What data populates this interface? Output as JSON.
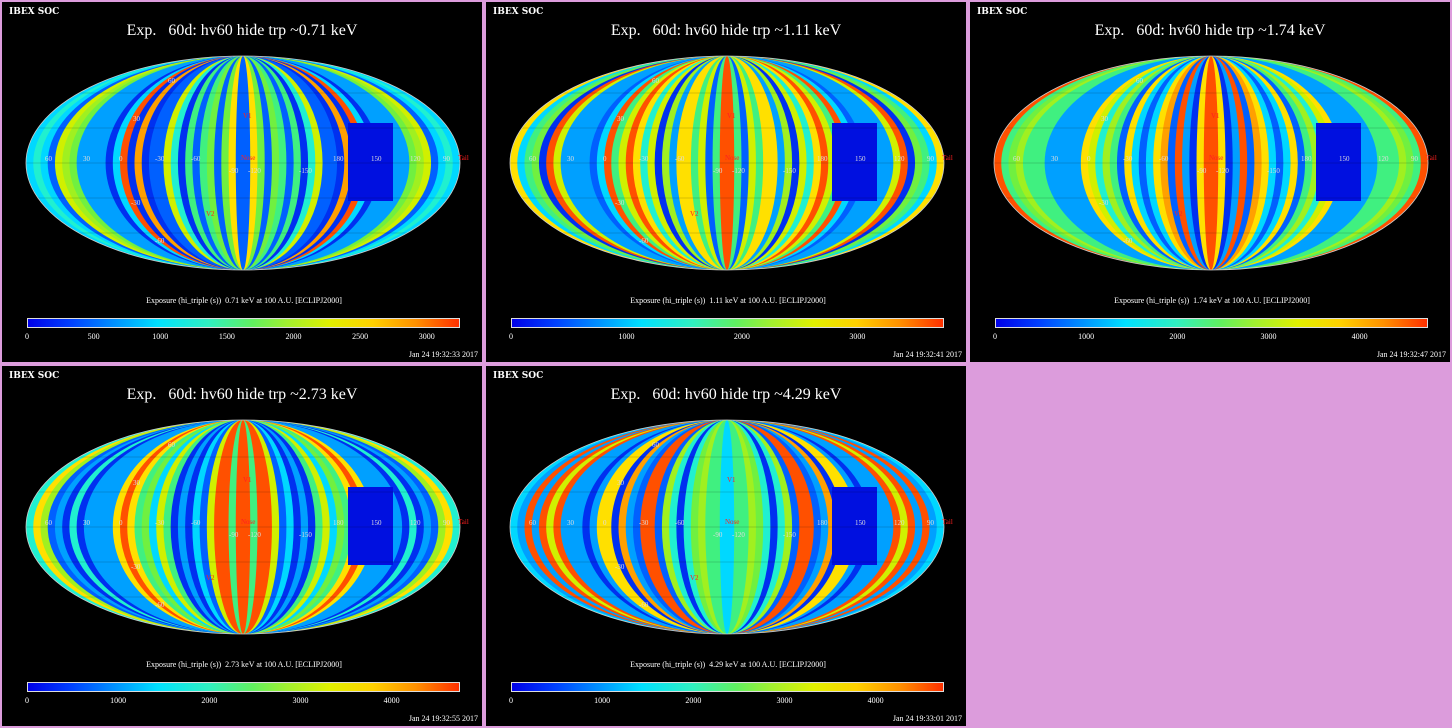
{
  "header_label": "IBEX SOC",
  "map_labels": {
    "longitudes": [
      "60",
      "30",
      "0",
      "-30",
      "-60",
      "-90",
      "-120",
      "-150",
      "180",
      "150",
      "120",
      "90"
    ],
    "latitudes": [
      "30",
      "-30",
      "60",
      "-60"
    ],
    "markers": [
      "V1",
      "V2",
      "Nose",
      "Tail"
    ]
  },
  "panels": [
    {
      "title": "Exp.   60d: hv60 hide trp ~0.71 keV",
      "caption": "Exposure (hi_triple (s))  0.71 keV at 100 A.U. [ECLIPJ2000]",
      "timestamp": "Jan 24 19:32:33 2017",
      "colorbar_ticks": [
        "0",
        "500",
        "1000",
        "1500",
        "2000",
        "2500",
        "3000"
      ],
      "colorbar_max": 3250
    },
    {
      "title": "Exp.   60d: hv60 hide trp ~1.11 keV",
      "caption": "Exposure (hi_triple (s))  1.11 keV at 100 A.U. [ECLIPJ2000]",
      "timestamp": "Jan 24 19:32:41 2017",
      "colorbar_ticks": [
        "0",
        "1000",
        "2000",
        "3000"
      ],
      "colorbar_max": 3750
    },
    {
      "title": "Exp.   60d: hv60 hide trp ~1.74 keV",
      "caption": "Exposure (hi_triple (s))  1.74 keV at 100 A.U. [ECLIPJ2000]",
      "timestamp": "Jan 24 19:32:47 2017",
      "colorbar_ticks": [
        "0",
        "1000",
        "2000",
        "3000",
        "4000"
      ],
      "colorbar_max": 4750
    },
    {
      "title": "Exp.   60d: hv60 hide trp ~2.73 keV",
      "caption": "Exposure (hi_triple (s))  2.73 keV at 100 A.U. [ECLIPJ2000]",
      "timestamp": "Jan 24 19:32:55 2017",
      "colorbar_ticks": [
        "0",
        "1000",
        "2000",
        "3000",
        "4000"
      ],
      "colorbar_max": 4750
    },
    {
      "title": "Exp.   60d: hv60 hide trp ~4.29 keV",
      "caption": "Exposure (hi_triple (s))  4.29 keV at 100 A.U. [ECLIPJ2000]",
      "timestamp": "Jan 24 19:33:01 2017",
      "colorbar_ticks": [
        "0",
        "1000",
        "2000",
        "3000",
        "4000"
      ],
      "colorbar_max": 4750
    }
  ],
  "chart_data": [
    {
      "type": "heatmap",
      "title": "Exp.   60d: hv60 hide trp ~0.71 keV",
      "xlabel": "Exposure (hi_triple (s))  0.71 keV at 100 A.U. [ECLIPJ2000]",
      "colorbar_range": [
        0,
        3250
      ]
    },
    {
      "type": "heatmap",
      "title": "Exp.   60d: hv60 hide trp ~1.11 keV",
      "xlabel": "Exposure (hi_triple (s))  1.11 keV at 100 A.U. [ECLIPJ2000]",
      "colorbar_range": [
        0,
        3750
      ]
    },
    {
      "type": "heatmap",
      "title": "Exp.   60d: hv60 hide trp ~1.74 keV",
      "xlabel": "Exposure (hi_triple (s))  1.74 keV at 100 A.U. [ECLIPJ2000]",
      "colorbar_range": [
        0,
        4750
      ]
    },
    {
      "type": "heatmap",
      "title": "Exp.   60d: hv60 hide trp ~2.73 keV",
      "xlabel": "Exposure (hi_triple (s))  2.73 keV at 100 A.U. [ECLIPJ2000]",
      "colorbar_range": [
        0,
        4750
      ]
    },
    {
      "type": "heatmap",
      "title": "Exp.   60d: hv60 hide trp ~4.29 keV",
      "xlabel": "Exposure (hi_triple (s))  4.29 keV at 100 A.U. [ECLIPJ2000]",
      "colorbar_range": [
        0,
        4750
      ]
    }
  ]
}
